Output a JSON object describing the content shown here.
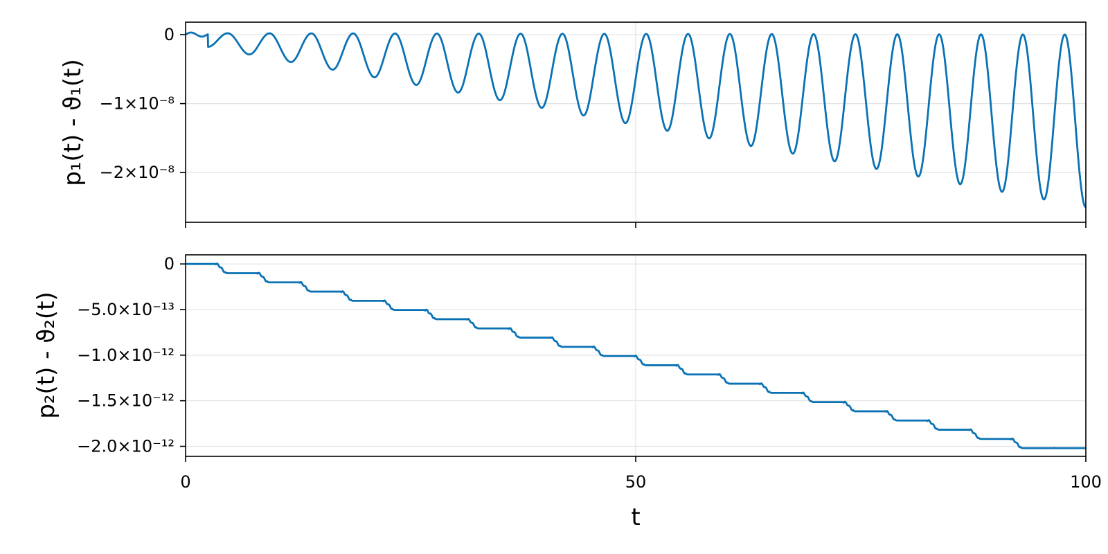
{
  "chart_data": [
    {
      "type": "line",
      "title": "",
      "xlabel": "",
      "ylabel": "p₁(t) - ϑ₁(t)",
      "xlim": [
        0,
        100
      ],
      "ylim": [
        -2.72e-08,
        1.8e-09
      ],
      "xticks": [
        0,
        50,
        100
      ],
      "xtick_labels_shown": false,
      "yticks": [
        0,
        -1e-08,
        -2e-08
      ],
      "ytick_labels": [
        "0",
        "−1×10⁻⁸",
        "−2×10⁻⁸"
      ],
      "grid": true,
      "series": [
        {
          "color": "#0a72b4",
          "model": "oscillation",
          "period": 4.65,
          "amplitude_end": 2.5e-08,
          "points": [
            [
              0,
              0
            ],
            [
              1,
              3e-10
            ],
            [
              2,
              4e-10
            ],
            [
              4.7,
              -1e-09
            ],
            [
              9.3,
              -2e-09
            ],
            [
              14,
              -3e-09
            ],
            [
              18.6,
              -4e-09
            ],
            [
              23.3,
              -5e-09
            ],
            [
              28,
              -6.2e-09
            ],
            [
              32.6,
              -7.2e-09
            ],
            [
              37.3,
              -8.5e-09
            ],
            [
              41.9,
              -9.7e-09
            ],
            [
              46.5,
              -1.1e-08
            ],
            [
              51.2,
              -1.22e-08
            ],
            [
              55.8,
              -1.33e-08
            ],
            [
              60.5,
              -1.46e-08
            ],
            [
              65.1,
              -1.6e-08
            ],
            [
              69.8,
              -1.73e-08
            ],
            [
              74.4,
              -1.85e-08
            ],
            [
              79.1,
              -1.99e-08
            ],
            [
              83.7,
              -2.13e-08
            ],
            [
              88.4,
              -2.28e-08
            ],
            [
              93,
              -2.42e-08
            ],
            [
              100,
              -2.58e-08
            ]
          ]
        }
      ]
    },
    {
      "type": "line",
      "title": "",
      "xlabel": "t",
      "ylabel": "p₂(t) - ϑ₂(t)",
      "xlim": [
        0,
        100
      ],
      "ylim": [
        -2.11e-12,
        1e-13
      ],
      "xticks": [
        0,
        50,
        100
      ],
      "xtick_labels": [
        "0",
        "50",
        "100"
      ],
      "yticks": [
        0,
        -5e-13,
        -1e-12,
        -1.5e-12,
        -2e-12
      ],
      "ytick_labels": [
        "0",
        "−5.0×10⁻¹³",
        "−1.0×10⁻¹²",
        "−1.5×10⁻¹²",
        "−2.0×10⁻¹²"
      ],
      "grid": true,
      "series": [
        {
          "color": "#0a72b4",
          "model": "staircase",
          "step_period": 4.65,
          "step_size": -1.01e-13,
          "points": [
            [
              0,
              0
            ],
            [
              1,
              0
            ],
            [
              2,
              -5e-14
            ],
            [
              5.5,
              -1e-13
            ],
            [
              10,
              -1.9e-13
            ],
            [
              15,
              -2.9e-13
            ],
            [
              20,
              -3.8e-13
            ],
            [
              25,
              -4.7e-13
            ],
            [
              30,
              -5.7e-13
            ],
            [
              35,
              -6.6e-13
            ],
            [
              40,
              -7.6e-13
            ],
            [
              45,
              -8.5e-13
            ],
            [
              50,
              -9.5e-13
            ],
            [
              55,
              -1.05e-12
            ],
            [
              60,
              -1.14e-12
            ],
            [
              65,
              -1.24e-12
            ],
            [
              70,
              -1.33e-12
            ],
            [
              75,
              -1.43e-12
            ],
            [
              80,
              -1.52e-12
            ],
            [
              85,
              -1.62e-12
            ],
            [
              90,
              -1.71e-12
            ],
            [
              95,
              -1.82e-12
            ],
            [
              100,
              -2.02e-12
            ]
          ]
        }
      ]
    }
  ]
}
